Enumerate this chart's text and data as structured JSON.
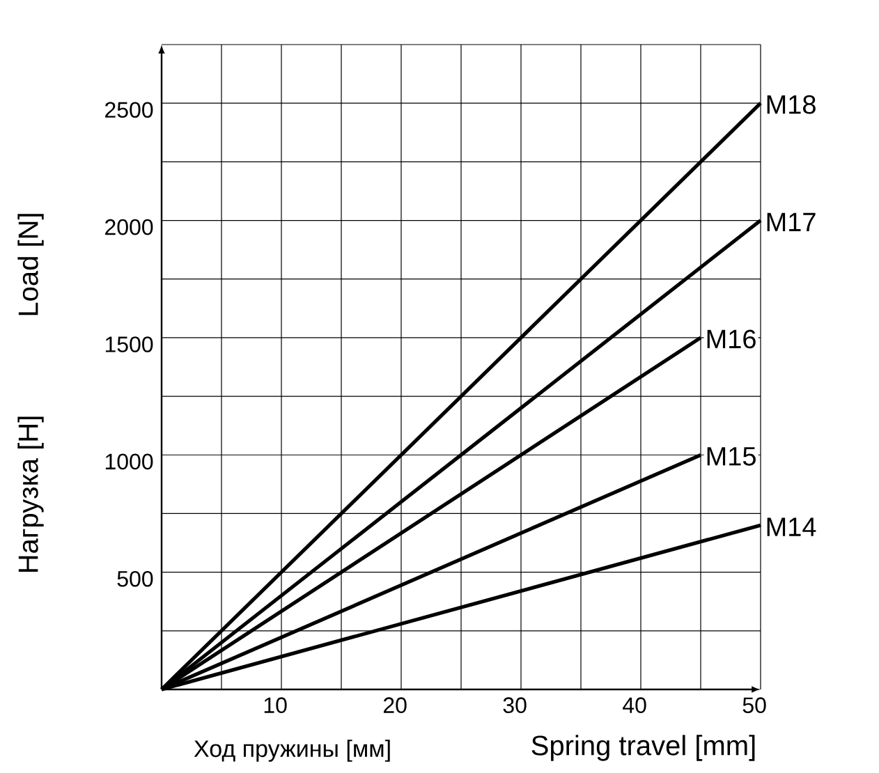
{
  "chart_data": {
    "type": "line",
    "xlabel": "Spring travel [mm]",
    "ylabel": "Load [N]",
    "annotations": [
      "Ход пружины [мм]",
      "Нагрузка [Н]"
    ],
    "xlim": [
      0,
      50
    ],
    "ylim": [
      0,
      2750
    ],
    "xticks": [
      {
        "value": 5,
        "label": null
      },
      10,
      {
        "value": 15,
        "label": null
      },
      20,
      {
        "value": 25,
        "label": null
      },
      30,
      {
        "value": 35,
        "label": null
      },
      40,
      {
        "value": 45,
        "label": null
      },
      50
    ],
    "yticks": [
      {
        "value": 250,
        "label": null
      },
      500,
      {
        "value": 750,
        "label": null
      },
      1000,
      {
        "value": 1250,
        "label": null
      },
      1500,
      {
        "value": 1750,
        "label": null
      },
      2000,
      {
        "value": 2250,
        "label": null
      },
      2500,
      {
        "value": 2750,
        "label": null
      }
    ],
    "grid": true,
    "marker": "none",
    "line_style": "solid",
    "series": [
      {
        "name": "M18",
        "color": "#000000",
        "x": [
          0,
          50
        ],
        "values": [
          0,
          2500
        ]
      },
      {
        "name": "M17",
        "color": "#000000",
        "x": [
          0,
          50
        ],
        "values": [
          0,
          2000
        ]
      },
      {
        "name": "M16",
        "color": "#000000",
        "x": [
          0,
          45
        ],
        "values": [
          0,
          1500
        ]
      },
      {
        "name": "M15",
        "color": "#000000",
        "x": [
          0,
          45
        ],
        "values": [
          0,
          1000
        ]
      },
      {
        "name": "M14",
        "color": "#000000",
        "x": [
          0,
          50
        ],
        "values": [
          0,
          700
        ]
      }
    ]
  }
}
